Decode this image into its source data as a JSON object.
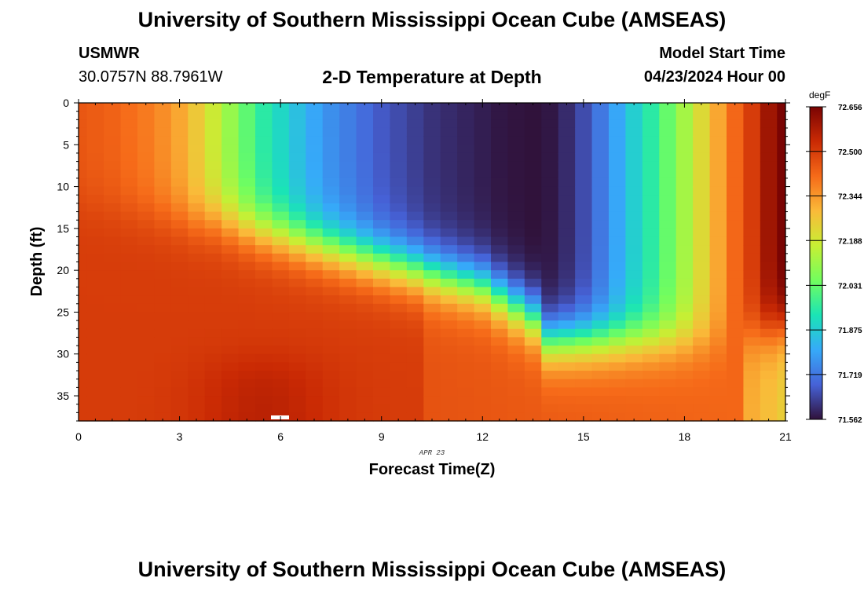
{
  "header": {
    "title": "University of Southern Mississippi Ocean Cube (AMSEAS)",
    "station": "USMWR",
    "coords": "30.0757N  88.7961W",
    "subtitle": "2-D Temperature at Depth",
    "model_start_label": "Model Start Time",
    "model_start_value": "04/23/2024 Hour 00"
  },
  "footer": {
    "title": "University of Southern Mississippi Ocean Cube (AMSEAS)"
  },
  "chart_data": {
    "type": "heatmap",
    "title": "2-D Temperature at Depth",
    "xlabel": "Forecast Time(Z)",
    "ylabel": "Depth (ft)",
    "date_label": "APR 23",
    "xlim": [
      0,
      21
    ],
    "ylim": [
      0,
      38
    ],
    "y_inverted": true,
    "x_ticks": [
      "0",
      "3",
      "6",
      "9",
      "12",
      "15",
      "18",
      "21"
    ],
    "x_tick_values": [
      0,
      3,
      6,
      9,
      12,
      15,
      18,
      21
    ],
    "y_ticks": [
      "0",
      "5",
      "10",
      "15",
      "20",
      "25",
      "30",
      "35"
    ],
    "y_tick_values": [
      0,
      5,
      10,
      15,
      20,
      25,
      30,
      35
    ],
    "colorbar": {
      "unit": "degF",
      "min": 71.562,
      "max": 72.656,
      "labels": [
        "72.656",
        "72.500",
        "72.344",
        "72.188",
        "72.031",
        "71.875",
        "71.719",
        "71.562"
      ],
      "colors": [
        "#30123b",
        "#4662d7",
        "#36aaf9",
        "#1ae4b6",
        "#72fe5e",
        "#c7ef34",
        "#fabA39",
        "#f66b19",
        "#ca2a04",
        "#7a0403"
      ]
    },
    "grid": {
      "hours": [
        0,
        0.5,
        1,
        1.5,
        2,
        2.5,
        3,
        3.5,
        4,
        4.5,
        5,
        5.5,
        6,
        6.5,
        7,
        7.5,
        8,
        8.5,
        9,
        9.5,
        10,
        10.5,
        11,
        11.5,
        12,
        12.5,
        13,
        13.5,
        14,
        14.5,
        15,
        15.5,
        16,
        16.5,
        17,
        17.5,
        18,
        18.5,
        19,
        19.5,
        20,
        20.5,
        21
      ],
      "depth_step_ft": 1,
      "surface_profile_degF": [
        72.45,
        72.44,
        72.43,
        72.41,
        72.39,
        72.36,
        72.32,
        72.26,
        72.18,
        72.1,
        72.02,
        71.95,
        71.9,
        71.85,
        71.8,
        71.76,
        71.73,
        71.7,
        71.67,
        71.65,
        71.63,
        71.61,
        71.6,
        71.59,
        71.58,
        71.57,
        71.565,
        71.56,
        71.57,
        71.6,
        71.65,
        71.72,
        71.8,
        71.88,
        71.95,
        72.03,
        72.12,
        72.22,
        72.32,
        72.42,
        72.5,
        72.6,
        72.66
      ]
    }
  }
}
